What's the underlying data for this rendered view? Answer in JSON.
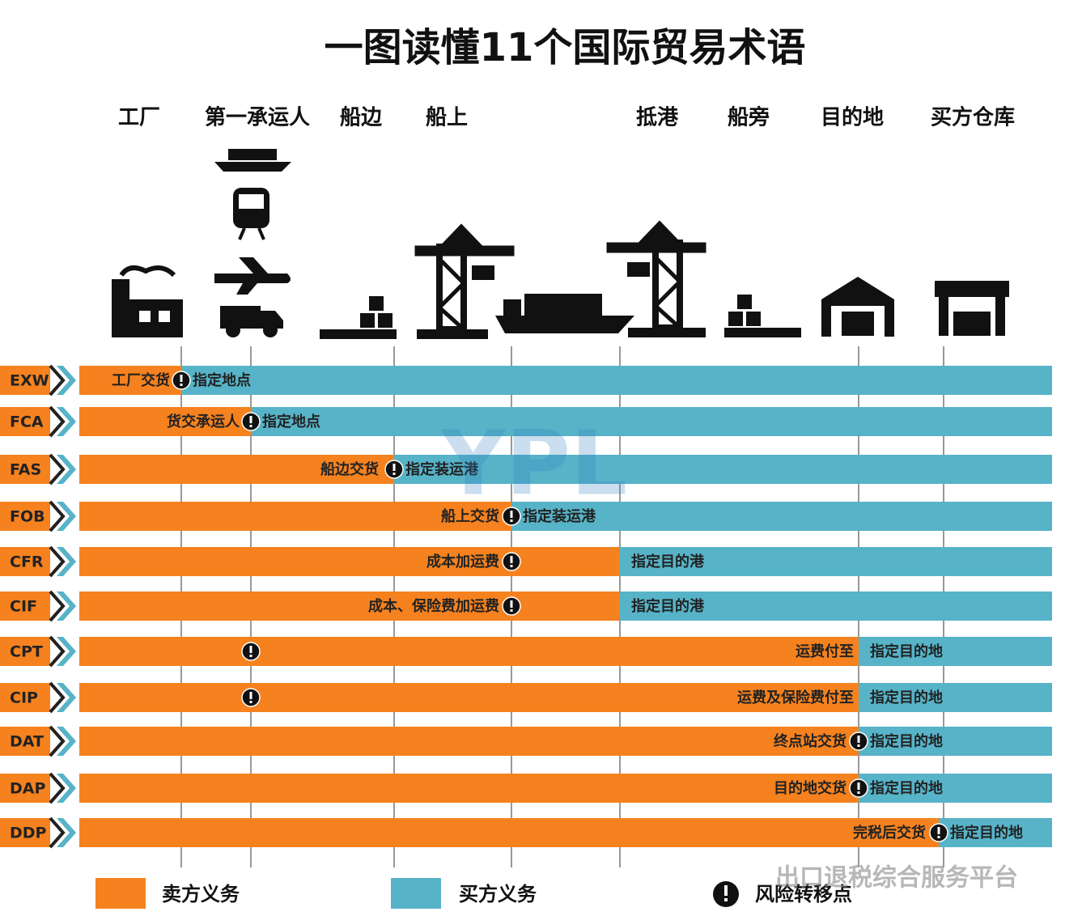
{
  "title": "一图读懂11个国际贸易术语",
  "stages": [
    "工厂",
    "第一承运人",
    "船边",
    "船上",
    "抵港",
    "船旁",
    "目的地",
    "买方仓库"
  ],
  "rows": [
    {
      "code": "EXW",
      "seller": "工厂交货",
      "buyer": "指定地点"
    },
    {
      "code": "FCA",
      "seller": "货交承运人",
      "buyer": "指定地点"
    },
    {
      "code": "FAS",
      "seller": "船边交货",
      "buyer": "指定装运港"
    },
    {
      "code": "FOB",
      "seller": "船上交货",
      "buyer": "指定装运港"
    },
    {
      "code": "CFR",
      "seller": "成本加运费",
      "buyer": "指定目的港"
    },
    {
      "code": "CIF",
      "seller": "成本、保险费加运费",
      "buyer": "指定目的港"
    },
    {
      "code": "CPT",
      "seller": "运费付至",
      "buyer": "指定目的地"
    },
    {
      "code": "CIP",
      "seller": "运费及保险费付至",
      "buyer": "指定目的地"
    },
    {
      "code": "DAT",
      "seller": "终点站交货",
      "buyer": "指定目的地"
    },
    {
      "code": "DAP",
      "seller": "目的地交货",
      "buyer": "指定目的地"
    },
    {
      "code": "DDP",
      "seller": "完税后交货",
      "buyer": "指定目的地"
    }
  ],
  "legend": {
    "seller": "卖方义务",
    "buyer": "买方义务",
    "risk": "风险转移点"
  },
  "watermark": {
    "logo": "YPL",
    "footer": "出口退税综合服务平台"
  }
}
